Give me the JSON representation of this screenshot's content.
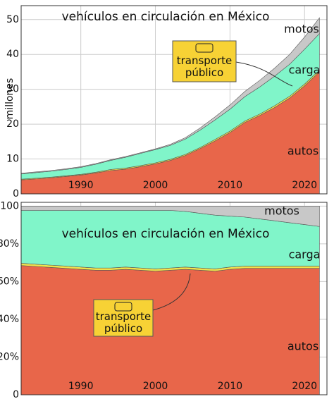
{
  "chart_data": [
    {
      "type": "area",
      "stacked": true,
      "title": "vehículos en circulación en México",
      "ylabel": "millones",
      "x": [
        1982,
        1984,
        1986,
        1988,
        1990,
        1992,
        1994,
        1996,
        1998,
        2000,
        2002,
        2004,
        2006,
        2008,
        2010,
        2012,
        2014,
        2016,
        2018,
        2020,
        2022
      ],
      "series": [
        {
          "name": "autos",
          "color": "#e8664a",
          "values": [
            4.0,
            4.3,
            4.6,
            5.0,
            5.4,
            6.0,
            6.7,
            7.1,
            7.8,
            8.6,
            9.6,
            11.0,
            13.0,
            15.2,
            17.6,
            20.5,
            22.5,
            24.8,
            27.5,
            31.0,
            35.0
          ]
        },
        {
          "name": "transporte público",
          "color": "#f2e34c",
          "values": [
            0.2,
            0.2,
            0.2,
            0.2,
            0.2,
            0.2,
            0.3,
            0.3,
            0.3,
            0.3,
            0.3,
            0.3,
            0.3,
            0.4,
            0.4,
            0.4,
            0.4,
            0.5,
            0.5,
            0.5,
            0.5
          ]
        },
        {
          "name": "carga",
          "color": "#80f5c9",
          "values": [
            1.5,
            1.6,
            1.7,
            1.8,
            2.0,
            2.3,
            2.6,
            3.1,
            3.5,
            3.8,
            4.0,
            4.4,
            5.0,
            5.6,
            6.3,
            7.0,
            7.8,
            8.5,
            9.2,
            10.0,
            10.5
          ]
        },
        {
          "name": "motos",
          "color": "#c8c8c8",
          "values": [
            0.2,
            0.2,
            0.2,
            0.2,
            0.2,
            0.2,
            0.2,
            0.2,
            0.2,
            0.2,
            0.3,
            0.4,
            0.6,
            0.9,
            1.2,
            1.5,
            1.9,
            2.3,
            2.8,
            3.5,
            4.5
          ]
        }
      ],
      "xlim": [
        1982,
        2023
      ],
      "ylim": [
        0,
        54
      ],
      "xticks": [
        1990,
        2000,
        2010,
        2020
      ],
      "yticks": [
        0,
        10,
        20,
        30,
        40,
        50
      ],
      "grid": true
    },
    {
      "type": "area",
      "stacked": true,
      "title": "vehículos en circulación en México",
      "x": [
        1982,
        1984,
        1986,
        1988,
        1990,
        1992,
        1994,
        1996,
        1998,
        2000,
        2002,
        2004,
        2006,
        2008,
        2010,
        2012,
        2014,
        2016,
        2018,
        2020,
        2022
      ],
      "series": [
        {
          "name": "autos",
          "color": "#e8664a",
          "values": [
            68.5,
            68,
            67.5,
            67,
            66.5,
            66,
            66,
            66.5,
            66,
            65.5,
            66,
            66.5,
            66,
            65.5,
            66.5,
            67,
            67,
            67,
            67,
            67,
            67
          ]
        },
        {
          "name": "transporte público",
          "color": "#f2e34c",
          "values": [
            1.2,
            1.2,
            1.2,
            1.2,
            1.2,
            1.2,
            1.2,
            1.2,
            1.2,
            1.2,
            1.2,
            1.2,
            1.2,
            1.2,
            1.2,
            1.2,
            1.2,
            1.2,
            1.2,
            1.2,
            1.2
          ]
        },
        {
          "name": "carga",
          "color": "#80f5c9",
          "values": [
            28,
            28.5,
            29,
            29.5,
            30,
            30.5,
            30.5,
            30,
            30.5,
            31,
            30.5,
            29.5,
            29,
            28.5,
            27,
            26,
            25,
            24,
            23,
            22,
            21
          ]
        },
        {
          "name": "motos",
          "color": "#c8c8c8",
          "values": [
            2.3,
            2.3,
            2.3,
            2.3,
            2.3,
            2.3,
            2.3,
            2.3,
            2.3,
            2.3,
            2.3,
            2.8,
            3.8,
            4.8,
            5.3,
            5.8,
            6.8,
            7.8,
            8.8,
            9.8,
            10.8
          ]
        }
      ],
      "xlim": [
        1982,
        2023
      ],
      "ylim": [
        0,
        102
      ],
      "xticks": [
        1990,
        2000,
        2010,
        2020
      ],
      "yticks": [
        0,
        {
          "value": 20,
          "label": "20%"
        },
        {
          "value": 40,
          "label": "40%"
        },
        {
          "value": 60,
          "label": "60%"
        },
        {
          "value": 80,
          "label": "80%"
        },
        100
      ],
      "grid": true
    }
  ]
}
